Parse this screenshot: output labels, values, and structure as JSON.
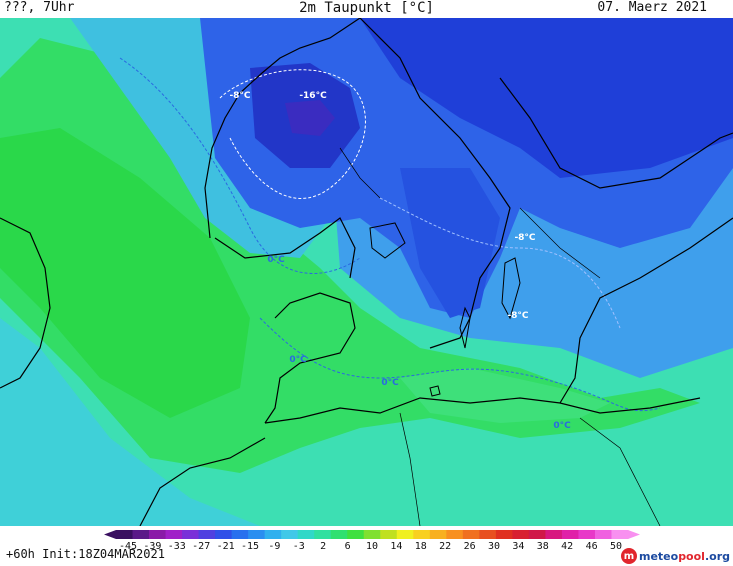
{
  "header": {
    "left": "???, 7Uhr",
    "title": "2m Taupunkt [°C]",
    "date": "07. Maerz 2021"
  },
  "map": {
    "labels": [
      {
        "text": "-8°C",
        "color": "#ffffff"
      },
      {
        "text": "-16°C",
        "color": "#ffffff"
      },
      {
        "text": "-8°C",
        "color": "#ffffff"
      },
      {
        "text": "-8°C",
        "color": "#ffffff"
      },
      {
        "text": "0°C",
        "color": "#2a6ae0"
      },
      {
        "text": "0°C",
        "color": "#2a6ae0"
      },
      {
        "text": "0°C",
        "color": "#2a6ae0"
      },
      {
        "text": "0°C",
        "color": "#2a6ae0"
      }
    ]
  },
  "colorbar": {
    "ticks": [
      "-45",
      "-39",
      "-33",
      "-27",
      "-21",
      "-15",
      "-9",
      "-3",
      "2",
      "6",
      "10",
      "14",
      "18",
      "22",
      "26",
      "30",
      "34",
      "38",
      "42",
      "46",
      "50"
    ],
    "colors": [
      "#3a1060",
      "#5a1a88",
      "#8a1aa8",
      "#a020c8",
      "#7a30d8",
      "#5040e0",
      "#3050e8",
      "#2870ee",
      "#2a8ef0",
      "#30b0ee",
      "#40c8e8",
      "#30d8c8",
      "#30e0a0",
      "#30e070",
      "#40e040",
      "#80e030",
      "#c0e020",
      "#f0f020",
      "#f8d020",
      "#f8b020",
      "#f89020",
      "#f07020",
      "#e85020",
      "#e03020",
      "#d82030",
      "#d01848",
      "#d81880",
      "#e020a8",
      "#e838c8",
      "#f060e0",
      "#f890f0"
    ]
  },
  "footer": {
    "run_info": "+60h Init:18Z04MAR2021",
    "logo_part1": "meteo",
    "logo_part2": "pool",
    "logo_part3": ".org"
  },
  "colors": {
    "ocean_deep_blue": "#1f3fd8",
    "blue": "#2e63e8",
    "light_blue": "#3f9fec",
    "cyan": "#3fd0d8",
    "turquoise": "#3ddfb3",
    "green": "#33dd66",
    "bright_green": "#2ad84a"
  }
}
